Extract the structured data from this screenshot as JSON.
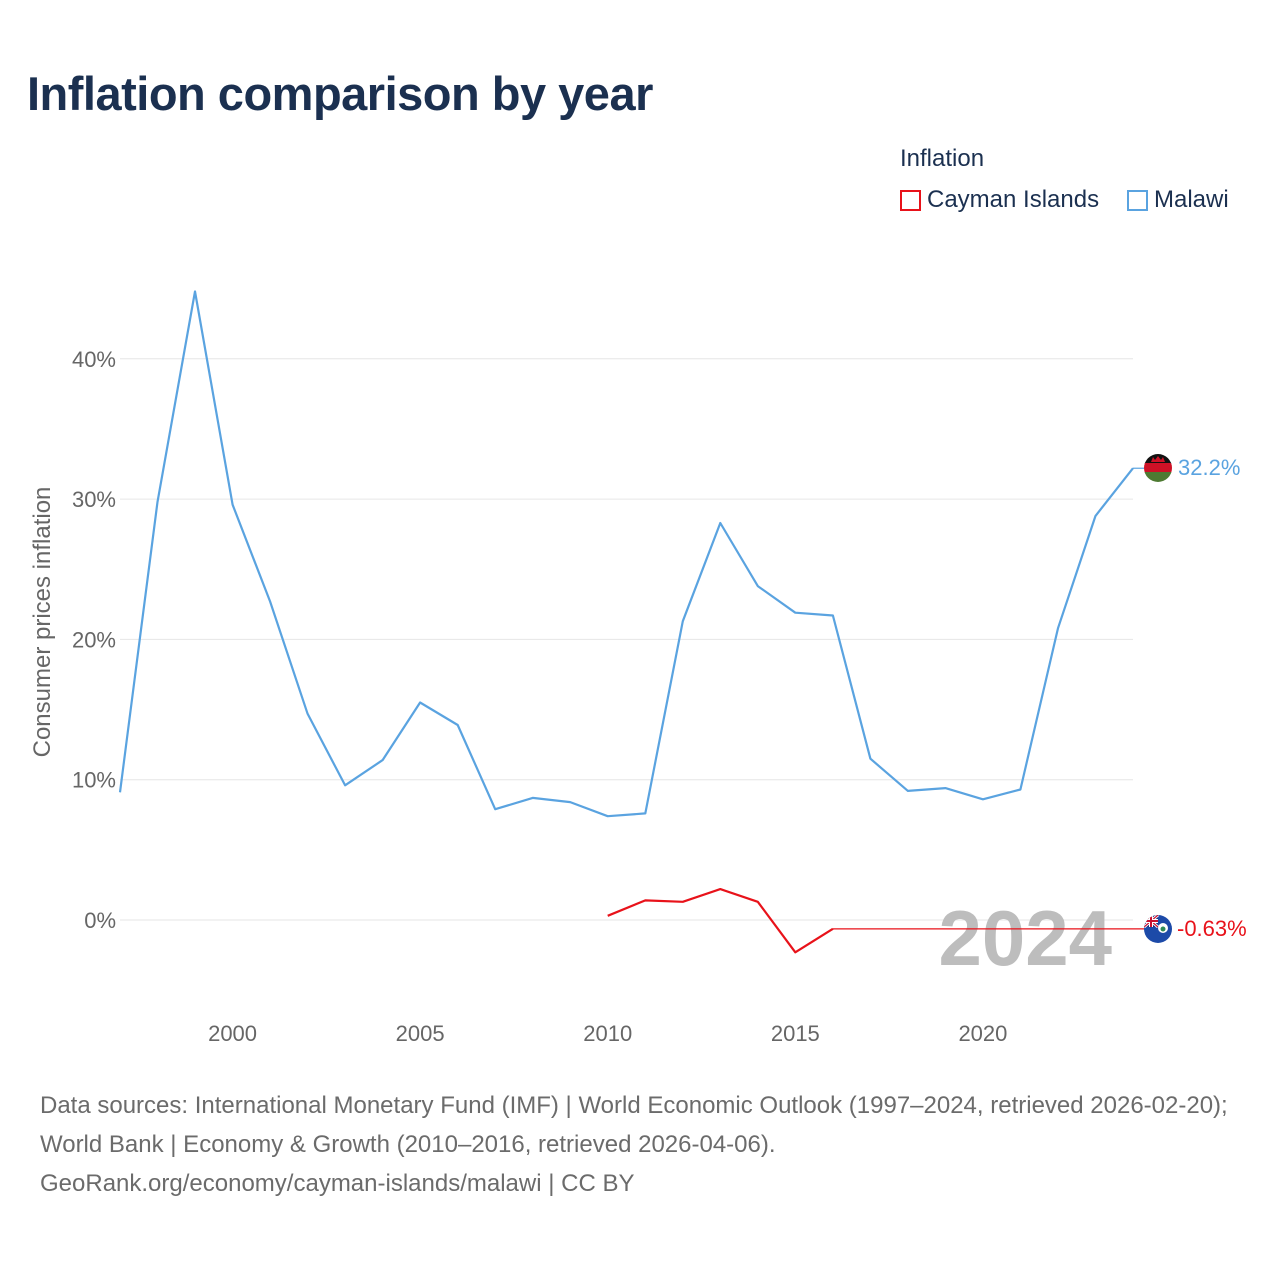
{
  "header": {
    "title": "Inflation comparison by year"
  },
  "legend": {
    "title": "Inflation",
    "items": [
      {
        "label": "Cayman Islands",
        "color": "#e8121a"
      },
      {
        "label": "Malawi",
        "color": "#5aa3e0"
      }
    ]
  },
  "chart_data": {
    "type": "line",
    "title": "Inflation comparison by year",
    "xlabel": "",
    "ylabel": "Consumer prices inflation",
    "xlim": [
      1997,
      2024
    ],
    "ylim": [
      -5,
      47
    ],
    "x_ticks": [
      2000,
      2005,
      2010,
      2015,
      2020
    ],
    "x_tick_labels": [
      "2000",
      "2005",
      "2010",
      "2015",
      "2020"
    ],
    "y_ticks": [
      0,
      10,
      20,
      30,
      40
    ],
    "y_tick_labels": [
      "0%",
      "10%",
      "20%",
      "30%",
      "40%"
    ],
    "grid": true,
    "year_watermark": "2024",
    "series": [
      {
        "name": "Malawi",
        "color": "#5aa3e0",
        "end_label": "32.2%",
        "points": [
          [
            1997,
            9.1
          ],
          [
            1998,
            29.8
          ],
          [
            1999,
            44.8
          ],
          [
            2000,
            29.6
          ],
          [
            2001,
            22.7
          ],
          [
            2002,
            14.7
          ],
          [
            2003,
            9.6
          ],
          [
            2004,
            11.4
          ],
          [
            2005,
            15.5
          ],
          [
            2006,
            13.9
          ],
          [
            2007,
            7.9
          ],
          [
            2008,
            8.7
          ],
          [
            2009,
            8.4
          ],
          [
            2010,
            7.4
          ],
          [
            2011,
            7.6
          ],
          [
            2012,
            21.3
          ],
          [
            2013,
            28.3
          ],
          [
            2014,
            23.8
          ],
          [
            2015,
            21.9
          ],
          [
            2016,
            21.7
          ],
          [
            2017,
            11.5
          ],
          [
            2018,
            9.2
          ],
          [
            2019,
            9.4
          ],
          [
            2020,
            8.6
          ],
          [
            2021,
            9.3
          ],
          [
            2022,
            20.8
          ],
          [
            2023,
            28.8
          ],
          [
            2024,
            32.2
          ]
        ]
      },
      {
        "name": "Cayman Islands",
        "color": "#e8121a",
        "end_label": "-0.63%",
        "points": [
          [
            2010,
            0.3
          ],
          [
            2011,
            1.4
          ],
          [
            2012,
            1.3
          ],
          [
            2013,
            2.2
          ],
          [
            2014,
            1.3
          ],
          [
            2015,
            -2.3
          ],
          [
            2016,
            -0.63
          ]
        ],
        "carried_value": -0.63
      }
    ]
  },
  "footer": {
    "sources": "Data sources: International Monetary Fund (IMF) | World Economic Outlook (1997–2024, retrieved 2026-02-20); World Bank | Economy & Growth (2010–2016, retrieved 2026-04-06).",
    "attribution": "GeoRank.org/economy/cayman-islands/malawi | CC BY"
  }
}
